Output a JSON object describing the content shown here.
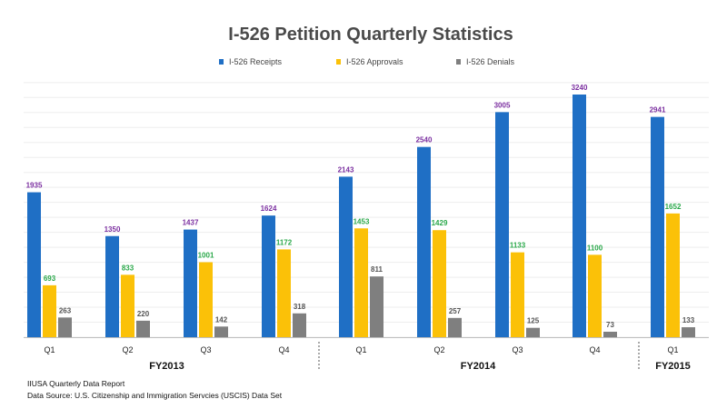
{
  "chart_data": {
    "type": "bar",
    "title": "I-526 Petition Quarterly Statistics",
    "categories": [
      "Q1",
      "Q2",
      "Q3",
      "Q4",
      "Q1",
      "Q2",
      "Q3",
      "Q4",
      "Q1"
    ],
    "groups": [
      {
        "label": "FY2013",
        "count": 4
      },
      {
        "label": "FY2014",
        "count": 4
      },
      {
        "label": "FY2015",
        "count": 1
      }
    ],
    "series": [
      {
        "name": "I-526 Receipts",
        "color": "#1f6fc5",
        "label_color": "#7b2fa0",
        "values": [
          1935,
          1350,
          1437,
          1624,
          2143,
          2540,
          3005,
          3240,
          2941
        ]
      },
      {
        "name": "I-526 Approvals",
        "color": "#fbc108",
        "label_color": "#2aa84a",
        "values": [
          693,
          833,
          1001,
          1172,
          1453,
          1429,
          1133,
          1100,
          1652
        ]
      },
      {
        "name": "I-526 Denials",
        "color": "#7f7f7f",
        "label_color": "#555555",
        "values": [
          263,
          220,
          142,
          318,
          811,
          257,
          125,
          73,
          133
        ]
      }
    ],
    "ylim": [
      0,
      3400
    ],
    "grid": true,
    "legend_position": "top-center",
    "xlabel": "",
    "ylabel": ""
  },
  "footer": {
    "line1": "IIUSA Quarterly Data Report",
    "line2": "Data Source: U.S. Citizenship and Immigration Servcies (USCIS) Data Set"
  }
}
